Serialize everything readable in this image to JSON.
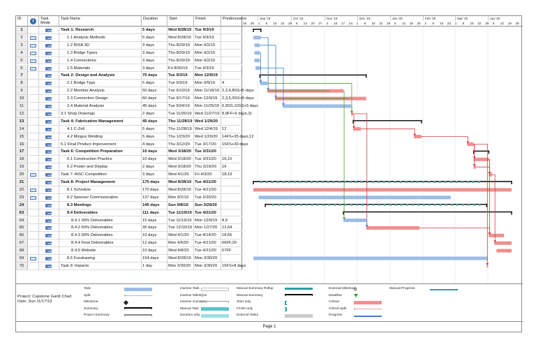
{
  "columns": {
    "id": "ID",
    "mode": "Task Mode",
    "name": "Task Name",
    "duration": "Duration",
    "start": "Start",
    "finish": "Finish",
    "predecessors": "Predecessors"
  },
  "tasks": [
    {
      "id": "1",
      "name": "Task 1: Research",
      "level": 0,
      "summary": true,
      "duration": "5 days",
      "start": "Wed 8/28/19",
      "finish": "Tue 9/3/19",
      "pred": "",
      "ind": ""
    },
    {
      "id": "2",
      "name": "1.1 Analysis Methods",
      "level": 1,
      "summary": false,
      "duration": "5 days",
      "start": "Wed 8/28/19",
      "finish": "Tue 9/3/19",
      "pred": "",
      "ind": "cal"
    },
    {
      "id": "3",
      "name": "1.2 RISA 3D",
      "level": 1,
      "summary": false,
      "duration": "3 days",
      "start": "Thu 8/29/19",
      "finish": "Mon 9/2/19",
      "pred": "",
      "ind": "cal"
    },
    {
      "id": "4",
      "name": "1.3 Bridge Types",
      "level": 1,
      "summary": false,
      "duration": "3 days",
      "start": "Thu 8/29/19",
      "finish": "Mon 9/2/19",
      "pred": "",
      "ind": "cal"
    },
    {
      "id": "5",
      "name": "1.4 Connections",
      "level": 1,
      "summary": false,
      "duration": "3 days",
      "start": "Thu 8/29/19",
      "finish": "Mon 9/2/19",
      "pred": "",
      "ind": "cal"
    },
    {
      "id": "6",
      "name": "1.5 Materials",
      "level": 1,
      "summary": false,
      "duration": "3 days",
      "start": "Fri 8/30/19",
      "finish": "Tue 9/3/19",
      "pred": "",
      "ind": "cal"
    },
    {
      "id": "7",
      "name": "Task 2: Design and Analysis",
      "level": 0,
      "summary": true,
      "duration": "70 days",
      "start": "Tue 9/3/19",
      "finish": "Mon 12/9/19",
      "pred": "",
      "ind": ""
    },
    {
      "id": "8",
      "name": "2.1 Bridge Type",
      "level": 1,
      "summary": false,
      "duration": "5 days",
      "start": "Tue 9/3/19",
      "finish": "Mon 9/9/19",
      "pred": "4",
      "ind": ""
    },
    {
      "id": "9",
      "name": "2.2 Member Analysis",
      "level": 1,
      "summary": false,
      "duration": "50 days",
      "start": "Tue 9/10/19",
      "finish": "Mon 11/18/19",
      "pred": "2,3,4,8SS+5 days",
      "ind": ""
    },
    {
      "id": "10",
      "name": "2.3 Connection Design",
      "level": 1,
      "summary": false,
      "duration": "60 days",
      "start": "Tue 9/17/19",
      "finish": "Mon 12/9/19",
      "pred": "2,3,5,9SS+5 days",
      "ind": ""
    },
    {
      "id": "11",
      "name": "2.4 Material Analysis",
      "level": 1,
      "summary": false,
      "duration": "45 days",
      "start": "Tue 9/24/19",
      "finish": "Mon 11/25/19",
      "pred": "6,9SS,10SS+5 days",
      "ind": ""
    },
    {
      "id": "12",
      "name": "3.1 Shop Drawings",
      "level": 0,
      "summary": false,
      "duration": "2 days",
      "start": "Tue 11/26/19",
      "finish": "Wed 11/27/19",
      "pred": "8,9FF+5 days,11",
      "ind": ""
    },
    {
      "id": "13",
      "name": "Task 4: Fabrication Management",
      "level": 0,
      "summary": true,
      "duration": "45 days",
      "start": "Thu 11/28/19",
      "finish": "Wed 1/29/20",
      "pred": "",
      "ind": ""
    },
    {
      "id": "14",
      "name": "4.1 C-Zell",
      "level": 1,
      "summary": false,
      "duration": "5 days",
      "start": "Thu 11/28/19",
      "finish": "Wed 12/4/19",
      "pred": "12",
      "ind": ""
    },
    {
      "id": "15",
      "name": "4.2 Mingus Welding",
      "level": 1,
      "summary": false,
      "duration": "5 days",
      "start": "Thu 1/23/20",
      "finish": "Wed 1/29/20",
      "pred": "14FS+35 days,12",
      "ind": ""
    },
    {
      "id": "16",
      "name": "5.1 Final Product Improvement",
      "level": 0,
      "summary": false,
      "duration": "4 days",
      "start": "Thu 3/12/20",
      "finish": "Tue 3/17/20",
      "pred": "15FS+30 days",
      "ind": ""
    },
    {
      "id": "17",
      "name": "Task 6: Competition Preparation",
      "level": 0,
      "summary": true,
      "duration": "10 days",
      "start": "Wed 3/18/20",
      "finish": "Tue 3/31/20",
      "pred": "",
      "ind": ""
    },
    {
      "id": "18",
      "name": "6.1 Construction Practice",
      "level": 1,
      "summary": false,
      "duration": "10 days",
      "start": "Wed 3/18/20",
      "finish": "Tue 3/31/20",
      "pred": "16,15",
      "ind": ""
    },
    {
      "id": "19",
      "name": "6.2 Poster and Display",
      "level": 1,
      "summary": false,
      "duration": "2 days",
      "start": "Wed 3/18/20",
      "finish": "Thu 3/19/20",
      "pred": "16",
      "ind": ""
    },
    {
      "id": "20",
      "name": "Task 7: AISC Competition",
      "level": 0,
      "summary": false,
      "duration": "3 days",
      "start": "Wed 4/1/20",
      "finish": "Fri 4/3/20",
      "pred": "18,19",
      "ind": "cal"
    },
    {
      "id": "21",
      "name": "Task 8: Project Management",
      "level": 0,
      "summary": true,
      "duration": "170 days",
      "start": "Wed 8/28/19",
      "finish": "Tue 4/21/20",
      "pred": "",
      "ind": ""
    },
    {
      "id": "22",
      "name": "8.1 Schedule",
      "level": 1,
      "summary": false,
      "duration": "170 days",
      "start": "Wed 8/28/19",
      "finish": "Tue 4/21/20",
      "pred": "",
      "ind": "cal"
    },
    {
      "id": "23",
      "name": "8.2 Sponsor Communication",
      "level": 1,
      "summary": false,
      "duration": "127 days",
      "start": "Mon 9/2/19",
      "finish": "Tue 2/25/20",
      "pred": "",
      "ind": "cal"
    },
    {
      "id": "24",
      "name": "8.3 Meetings",
      "level": 1,
      "summary": true,
      "duration": "145 days",
      "start": "Sun 9/8/19",
      "finish": "Sun 3/29/20",
      "pred": "",
      "ind": ""
    },
    {
      "id": "63",
      "name": "8.4 Deliverables",
      "level": 1,
      "summary": true,
      "duration": "111 days",
      "start": "Tue 11/19/19",
      "finish": "Tue 4/21/20",
      "pred": "",
      "ind": ""
    },
    {
      "id": "64",
      "name": "8.4.1 30% Deliverables",
      "level": 2,
      "summary": false,
      "duration": "15 days",
      "start": "Tue 11/19/19",
      "finish": "Mon 12/9/19",
      "pred": "8,9",
      "ind": ""
    },
    {
      "id": "65",
      "name": "8.4.2 60% Deliverables",
      "level": 2,
      "summary": false,
      "duration": "35 days",
      "start": "Tue 12/10/19",
      "finish": "Mon 1/27/20",
      "pred": "12,64",
      "ind": ""
    },
    {
      "id": "66",
      "name": "8.4.3 90% Deliverables",
      "level": 2,
      "summary": false,
      "duration": "10 days",
      "start": "Wed 4/1/20",
      "finish": "Tue 4/14/20",
      "pred": "18,65",
      "ind": ""
    },
    {
      "id": "67",
      "name": "8.4.4 Final Deliverables",
      "level": 2,
      "summary": false,
      "duration": "12 days",
      "start": "Mon 4/6/20",
      "finish": "Tue 4/21/20",
      "pred": "66FF,20",
      "ind": ""
    },
    {
      "id": "68",
      "name": "8.4.5 Website",
      "level": 2,
      "summary": false,
      "duration": "10 days",
      "start": "Wed 4/8/20",
      "finish": "Tue 4/21/20",
      "pred": "67FF",
      "ind": ""
    },
    {
      "id": "69",
      "name": "8.5 Fundraising",
      "level": 1,
      "summary": false,
      "duration": "154 days",
      "start": "Wed 8/28/19",
      "finish": "Mon 3/30/20",
      "pred": "",
      "ind": "cal"
    },
    {
      "id": "70",
      "name": "Task 9: Impacts",
      "level": 0,
      "summary": false,
      "duration": "1 day",
      "start": "Mon 3/30/20",
      "finish": "Mon 3/30/20",
      "pred": "16FS+8 days",
      "ind": ""
    }
  ],
  "timescale": {
    "months": [
      "Sep '19",
      "Oct '19",
      "Nov '19",
      "Dec '19",
      "Jan '20",
      "Feb '20",
      "Mar '20",
      "Apr '20"
    ],
    "days": [
      "18",
      "25",
      "1",
      "8",
      "15",
      "22",
      "29",
      "6",
      "13",
      "20",
      "27",
      "3",
      "10",
      "17",
      "24",
      "1",
      "8",
      "15",
      "22",
      "29",
      "5",
      "12",
      "19",
      "26",
      "2",
      "9",
      "16",
      "23",
      "1",
      "8",
      "15",
      "22",
      "29",
      "5",
      "12",
      "19",
      "26"
    ]
  },
  "gantt_colors": {
    "task": "#9bbce6",
    "critical": "#ef8f8f",
    "summary": "#000000",
    "link_blue": "#3f7fd0",
    "link_red": "#d23b3b",
    "link_green": "#4f9a2f",
    "progress": "#b28a66"
  },
  "project_info": {
    "project": "Project: Capstone Gantt Chart",
    "date": "Date: Sun 11/17/19"
  },
  "legend": [
    {
      "label": "Task",
      "symbol": "task-bar"
    },
    {
      "label": "Split",
      "symbol": "split"
    },
    {
      "label": "Milestone",
      "symbol": "milestone"
    },
    {
      "label": "Summary",
      "symbol": "summary"
    },
    {
      "label": "Project Summary",
      "symbol": "project-summary"
    },
    {
      "label": "Inactive Task",
      "symbol": "inactive-task"
    },
    {
      "label": "Inactive Milestone",
      "symbol": "inactive-milestone"
    },
    {
      "label": "Inactive Summary",
      "symbol": "inactive-summary"
    },
    {
      "label": "Manual Task",
      "symbol": "manual-task"
    },
    {
      "label": "Duration-only",
      "symbol": "duration-only"
    },
    {
      "label": "Manual Summary Rollup",
      "symbol": "manual-summary-rollup"
    },
    {
      "label": "Manual Summary",
      "symbol": "manual-summary"
    },
    {
      "label": "Start-only",
      "symbol": "start-only"
    },
    {
      "label": "Finish-only",
      "symbol": "finish-only"
    },
    {
      "label": "External Tasks",
      "symbol": "external-tasks"
    },
    {
      "label": "External Milestone",
      "symbol": "external-milestone"
    },
    {
      "label": "Deadline",
      "symbol": "deadline"
    },
    {
      "label": "Critical",
      "symbol": "critical"
    },
    {
      "label": "Critical Split",
      "symbol": "critical-split"
    },
    {
      "label": "Progress",
      "symbol": "progress"
    },
    {
      "label": "Manual Progress",
      "symbol": "manual-progress"
    }
  ],
  "footer": {
    "page": "Page 1"
  }
}
